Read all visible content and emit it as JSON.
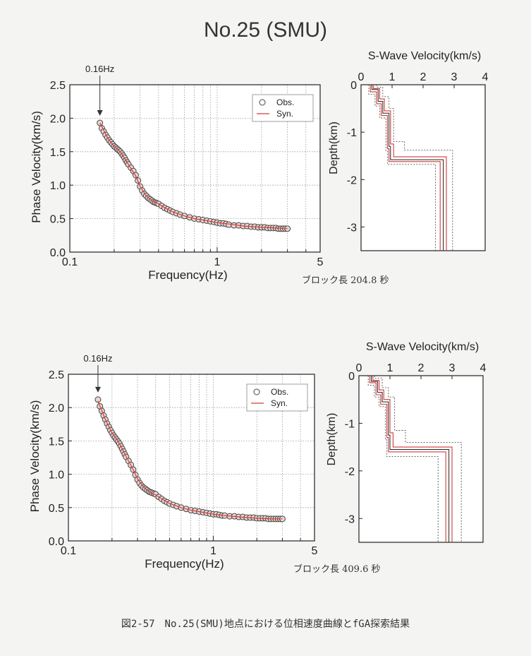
{
  "page": {
    "title": "No.25 (SMU)",
    "caption": "図2-57　No.25(SMU)地点における位相速度曲線とfGA探索結果"
  },
  "colors": {
    "syn": "#d23a3a",
    "obs_marker": "#444444",
    "bound": "#555555"
  },
  "chart_data": [
    {
      "type": "scatter",
      "id": "dispersion-1",
      "xlabel": "Frequency(Hz)",
      "ylabel": "Phase Velocity(km/s)",
      "x_scale": "log",
      "xlim": [
        0.1,
        5
      ],
      "ylim": [
        0,
        2.5
      ],
      "xticks": [
        "0.1",
        "1",
        "5"
      ],
      "yticks": [
        "0.0",
        "0.5",
        "1.0",
        "1.5",
        "2.0",
        "2.5"
      ],
      "grid": true,
      "legend": {
        "position": "top-right",
        "obs": "Obs.",
        "syn": "Syn."
      },
      "annotation": "0.16Hz",
      "annotation_x": 0.16,
      "note": "ブロック長 204.8 秒",
      "series": [
        {
          "name": "Obs.",
          "kind": "points",
          "x": [
            0.16,
            0.165,
            0.17,
            0.175,
            0.18,
            0.185,
            0.19,
            0.195,
            0.2,
            0.205,
            0.21,
            0.215,
            0.22,
            0.225,
            0.23,
            0.235,
            0.24,
            0.245,
            0.25,
            0.26,
            0.27,
            0.28,
            0.29,
            0.3,
            0.31,
            0.32,
            0.33,
            0.34,
            0.35,
            0.36,
            0.37,
            0.38,
            0.39,
            0.4,
            0.42,
            0.44,
            0.46,
            0.48,
            0.5,
            0.53,
            0.56,
            0.6,
            0.65,
            0.7,
            0.75,
            0.8,
            0.85,
            0.9,
            0.95,
            1.0,
            1.05,
            1.1,
            1.15,
            1.2,
            1.3,
            1.4,
            1.5,
            1.6,
            1.7,
            1.8,
            1.9,
            2.0,
            2.1,
            2.2,
            2.3,
            2.4,
            2.5,
            2.6,
            2.7,
            2.8,
            2.9,
            3.0
          ],
          "y": [
            1.93,
            1.85,
            1.8,
            1.75,
            1.71,
            1.67,
            1.64,
            1.61,
            1.58,
            1.56,
            1.54,
            1.52,
            1.5,
            1.47,
            1.44,
            1.41,
            1.37,
            1.34,
            1.31,
            1.26,
            1.21,
            1.15,
            1.07,
            0.98,
            0.92,
            0.87,
            0.84,
            0.81,
            0.79,
            0.77,
            0.75,
            0.74,
            0.73,
            0.72,
            0.69,
            0.66,
            0.64,
            0.62,
            0.6,
            0.58,
            0.56,
            0.54,
            0.52,
            0.5,
            0.49,
            0.48,
            0.47,
            0.46,
            0.45,
            0.44,
            0.43,
            0.43,
            0.42,
            0.41,
            0.4,
            0.4,
            0.39,
            0.39,
            0.38,
            0.38,
            0.37,
            0.37,
            0.37,
            0.36,
            0.36,
            0.36,
            0.36,
            0.35,
            0.35,
            0.35,
            0.35,
            0.35
          ]
        },
        {
          "name": "Syn.",
          "kind": "line",
          "x": [
            0.16,
            0.18,
            0.2,
            0.22,
            0.25,
            0.28,
            0.3,
            0.33,
            0.36,
            0.4,
            0.45,
            0.5,
            0.6,
            0.7,
            0.8,
            1.0,
            1.2,
            1.5,
            2.0,
            2.5,
            3.0
          ],
          "y": [
            1.93,
            1.71,
            1.58,
            1.5,
            1.31,
            1.14,
            0.98,
            0.84,
            0.77,
            0.72,
            0.65,
            0.6,
            0.54,
            0.5,
            0.48,
            0.44,
            0.42,
            0.39,
            0.37,
            0.36,
            0.35
          ]
        }
      ]
    },
    {
      "type": "line",
      "id": "profile-1",
      "title": "S-Wave Velocity(km/s)",
      "ylabel": "Depth(km)",
      "xlim": [
        0,
        4
      ],
      "ylim": [
        0,
        -3.5
      ],
      "xticks": [
        "0",
        "1",
        "2",
        "3",
        "4"
      ],
      "yticks": [
        "0",
        "-1",
        "-2",
        "-3"
      ],
      "series": [
        {
          "kind": "best",
          "x": [
            0.35,
            0.35,
            0.55,
            0.55,
            0.7,
            0.7,
            0.9,
            0.9,
            0.95,
            0.95,
            2.65,
            2.65
          ],
          "y": [
            0,
            -0.1,
            -0.1,
            -0.35,
            -0.35,
            -0.6,
            -0.6,
            -1.3,
            -1.3,
            -1.58,
            -1.58,
            -3.5
          ]
        },
        {
          "kind": "syn-low",
          "x": [
            0.3,
            0.3,
            0.5,
            0.5,
            0.65,
            0.65,
            0.85,
            0.85,
            0.9,
            0.9,
            2.55,
            2.55
          ],
          "y": [
            0,
            -0.15,
            -0.15,
            -0.4,
            -0.4,
            -0.65,
            -0.65,
            -1.35,
            -1.35,
            -1.62,
            -1.62,
            -3.5
          ]
        },
        {
          "kind": "syn-high",
          "x": [
            0.4,
            0.4,
            0.6,
            0.6,
            0.75,
            0.75,
            0.95,
            0.95,
            1.05,
            1.05,
            2.75,
            2.75
          ],
          "y": [
            0,
            -0.08,
            -0.08,
            -0.3,
            -0.3,
            -0.55,
            -0.55,
            -1.25,
            -1.25,
            -1.52,
            -1.52,
            -3.5
          ]
        },
        {
          "kind": "bound-low",
          "x": [
            0.25,
            0.25,
            0.45,
            0.45,
            0.6,
            0.6,
            0.8,
            0.8,
            0.85,
            0.85,
            2.4,
            2.4
          ],
          "y": [
            0,
            -0.2,
            -0.2,
            -0.45,
            -0.45,
            -0.7,
            -0.7,
            -1.4,
            -1.4,
            -1.68,
            -1.68,
            -3.5
          ]
        },
        {
          "kind": "bound-high",
          "x": [
            0.5,
            0.5,
            0.7,
            0.7,
            0.9,
            0.9,
            1.05,
            1.05,
            1.4,
            1.4,
            2.95,
            2.95
          ],
          "y": [
            0,
            -0.05,
            -0.05,
            -0.25,
            -0.25,
            -0.5,
            -0.5,
            -1.2,
            -1.2,
            -1.38,
            -1.38,
            -3.5
          ]
        }
      ]
    },
    {
      "type": "scatter",
      "id": "dispersion-2",
      "xlabel": "Frequency(Hz)",
      "ylabel": "Phase Velocity(km/s)",
      "x_scale": "log",
      "xlim": [
        0.1,
        5
      ],
      "ylim": [
        0,
        2.5
      ],
      "xticks": [
        "0.1",
        "1",
        "5"
      ],
      "yticks": [
        "0.0",
        "0.5",
        "1.0",
        "1.5",
        "2.0",
        "2.5"
      ],
      "grid": true,
      "legend": {
        "position": "top-right",
        "obs": "Obs.",
        "syn": "Syn."
      },
      "annotation": "0.16Hz",
      "annotation_x": 0.16,
      "note": "ブロック長 409.6 秒",
      "series": [
        {
          "name": "Obs.",
          "kind": "points",
          "x": [
            0.16,
            0.165,
            0.17,
            0.175,
            0.18,
            0.185,
            0.19,
            0.195,
            0.2,
            0.205,
            0.21,
            0.215,
            0.22,
            0.225,
            0.23,
            0.235,
            0.24,
            0.245,
            0.25,
            0.26,
            0.27,
            0.28,
            0.29,
            0.3,
            0.31,
            0.32,
            0.33,
            0.34,
            0.35,
            0.36,
            0.37,
            0.38,
            0.39,
            0.4,
            0.42,
            0.44,
            0.46,
            0.48,
            0.5,
            0.53,
            0.56,
            0.6,
            0.65,
            0.7,
            0.75,
            0.8,
            0.85,
            0.9,
            0.95,
            1.0,
            1.05,
            1.1,
            1.15,
            1.2,
            1.3,
            1.4,
            1.5,
            1.6,
            1.7,
            1.8,
            1.9,
            2.0,
            2.1,
            2.2,
            2.3,
            2.4,
            2.5,
            2.6,
            2.7,
            2.8,
            2.9,
            3.0
          ],
          "y": [
            2.12,
            2.02,
            1.95,
            1.88,
            1.82,
            1.76,
            1.71,
            1.66,
            1.62,
            1.58,
            1.55,
            1.52,
            1.49,
            1.46,
            1.42,
            1.38,
            1.34,
            1.3,
            1.26,
            1.2,
            1.14,
            1.07,
            0.99,
            0.92,
            0.87,
            0.83,
            0.8,
            0.78,
            0.76,
            0.74,
            0.73,
            0.72,
            0.71,
            0.7,
            0.66,
            0.63,
            0.6,
            0.58,
            0.56,
            0.54,
            0.52,
            0.5,
            0.48,
            0.46,
            0.45,
            0.44,
            0.43,
            0.42,
            0.41,
            0.4,
            0.4,
            0.39,
            0.38,
            0.38,
            0.37,
            0.37,
            0.36,
            0.36,
            0.35,
            0.35,
            0.35,
            0.34,
            0.34,
            0.34,
            0.34,
            0.33,
            0.33,
            0.33,
            0.33,
            0.33,
            0.33,
            0.33
          ]
        },
        {
          "name": "Syn.",
          "kind": "line",
          "x": [
            0.16,
            0.18,
            0.2,
            0.22,
            0.25,
            0.28,
            0.3,
            0.33,
            0.36,
            0.4,
            0.45,
            0.5,
            0.6,
            0.7,
            0.8,
            1.0,
            1.2,
            1.5,
            2.0,
            2.5,
            3.0
          ],
          "y": [
            2.1,
            1.82,
            1.62,
            1.5,
            1.27,
            1.07,
            0.93,
            0.81,
            0.74,
            0.69,
            0.62,
            0.56,
            0.5,
            0.46,
            0.44,
            0.4,
            0.38,
            0.36,
            0.34,
            0.33,
            0.33
          ]
        }
      ]
    },
    {
      "type": "line",
      "id": "profile-2",
      "title": "S-Wave Velocity(km/s)",
      "ylabel": "Depth(km)",
      "xlim": [
        0,
        4
      ],
      "ylim": [
        0,
        -3.5
      ],
      "xticks": [
        "0",
        "1",
        "2",
        "3",
        "4"
      ],
      "yticks": [
        "0",
        "-1",
        "-2",
        "-3"
      ],
      "series": [
        {
          "kind": "best",
          "x": [
            0.4,
            0.4,
            0.6,
            0.6,
            0.75,
            0.75,
            0.95,
            0.95,
            1.0,
            1.0,
            2.9,
            2.9
          ],
          "y": [
            0,
            -0.12,
            -0.12,
            -0.35,
            -0.35,
            -0.55,
            -0.55,
            -1.25,
            -1.25,
            -1.55,
            -1.55,
            -3.5
          ]
        },
        {
          "kind": "syn-low",
          "x": [
            0.35,
            0.35,
            0.55,
            0.55,
            0.7,
            0.7,
            0.9,
            0.9,
            0.95,
            0.95,
            2.8,
            2.8
          ],
          "y": [
            0,
            -0.15,
            -0.15,
            -0.4,
            -0.4,
            -0.6,
            -0.6,
            -1.3,
            -1.3,
            -1.6,
            -1.6,
            -3.5
          ]
        },
        {
          "kind": "syn-high",
          "x": [
            0.45,
            0.45,
            0.65,
            0.65,
            0.8,
            0.8,
            1.0,
            1.0,
            1.1,
            1.1,
            3.0,
            3.0
          ],
          "y": [
            0,
            -0.1,
            -0.1,
            -0.3,
            -0.3,
            -0.5,
            -0.5,
            -1.2,
            -1.2,
            -1.5,
            -1.5,
            -3.5
          ]
        },
        {
          "kind": "bound-low",
          "x": [
            0.3,
            0.3,
            0.5,
            0.5,
            0.65,
            0.65,
            0.85,
            0.85,
            0.9,
            0.9,
            2.55,
            2.55
          ],
          "y": [
            0,
            -0.2,
            -0.2,
            -0.45,
            -0.45,
            -0.65,
            -0.65,
            -1.35,
            -1.35,
            -1.7,
            -1.7,
            -3.5
          ]
        },
        {
          "kind": "bound-high",
          "x": [
            0.5,
            0.5,
            0.75,
            0.75,
            0.95,
            0.95,
            1.15,
            1.15,
            1.5,
            1.5,
            3.3,
            3.3
          ],
          "y": [
            0,
            -0.05,
            -0.05,
            -0.25,
            -0.25,
            -0.45,
            -0.45,
            -1.15,
            -1.15,
            -1.4,
            -1.4,
            -3.5
          ]
        }
      ]
    }
  ]
}
